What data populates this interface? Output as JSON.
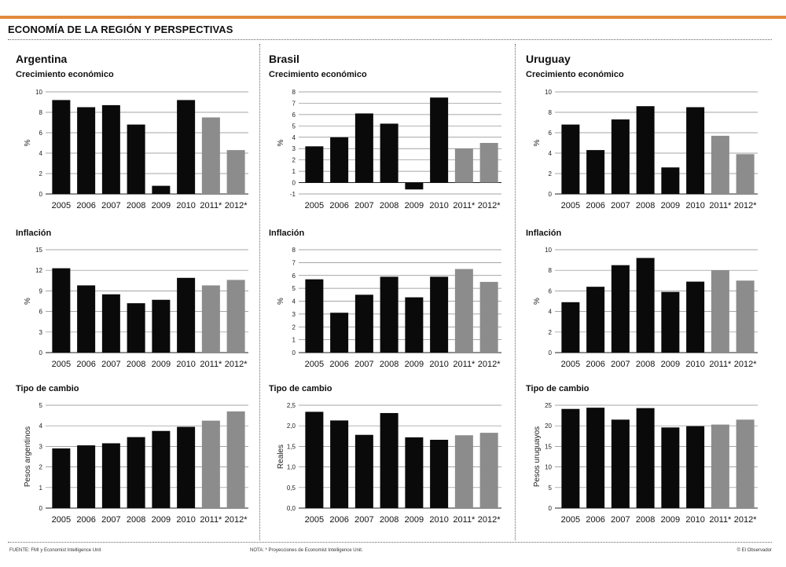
{
  "header": {
    "title": "ECONOMÍA DE LA REGIÓN Y PERSPECTIVAS"
  },
  "columns": [
    {
      "country": "Argentina"
    },
    {
      "country": "Brasil"
    },
    {
      "country": "Uruguay"
    }
  ],
  "footer": {
    "source": "FUENTE: FMI y Economist Intelligence Unit",
    "note": "NOTA: * Proyecciones de Economist Intelligence Unit.",
    "credit": "© El Observador"
  },
  "chart_data": [
    {
      "id": "ar-growth",
      "country": "Argentina",
      "type": "bar",
      "title": "Crecimiento económico",
      "ylabel": "%",
      "categories": [
        "2005",
        "2006",
        "2007",
        "2008",
        "2009",
        "2010",
        "2011*",
        "2012*"
      ],
      "values": [
        9.2,
        8.5,
        8.7,
        6.8,
        0.8,
        9.2,
        7.5,
        4.3
      ],
      "projected": [
        false,
        false,
        false,
        false,
        false,
        false,
        true,
        true
      ],
      "ylim": [
        0,
        10
      ],
      "yticks": [
        "0",
        "2",
        "4",
        "6",
        "8",
        "10"
      ]
    },
    {
      "id": "br-growth",
      "country": "Brasil",
      "type": "bar",
      "title": "Crecimiento económico",
      "ylabel": "%",
      "categories": [
        "2005",
        "2006",
        "2007",
        "2008",
        "2009",
        "2010",
        "2011*",
        "2012*"
      ],
      "values": [
        3.2,
        4.0,
        6.1,
        5.2,
        -0.6,
        7.5,
        3.0,
        3.5
      ],
      "projected": [
        false,
        false,
        false,
        false,
        false,
        false,
        true,
        true
      ],
      "ylim": [
        -1,
        8
      ],
      "yticks": [
        "-1",
        "0",
        "1",
        "2",
        "3",
        "4",
        "5",
        "6",
        "7",
        "8"
      ]
    },
    {
      "id": "uy-growth",
      "country": "Uruguay",
      "type": "bar",
      "title": "Crecimiento económico",
      "ylabel": "%",
      "categories": [
        "2005",
        "2006",
        "2007",
        "2008",
        "2009",
        "2010",
        "2011*",
        "2012*"
      ],
      "values": [
        6.8,
        4.3,
        7.3,
        8.6,
        2.6,
        8.5,
        5.7,
        3.9
      ],
      "projected": [
        false,
        false,
        false,
        false,
        false,
        false,
        true,
        true
      ],
      "ylim": [
        0,
        10
      ],
      "yticks": [
        "0",
        "2",
        "4",
        "6",
        "8",
        "10"
      ]
    },
    {
      "id": "ar-inflation",
      "country": "Argentina",
      "type": "bar",
      "title": "Inflación",
      "ylabel": "%",
      "categories": [
        "2005",
        "2006",
        "2007",
        "2008",
        "2009",
        "2010",
        "2011*",
        "2012*"
      ],
      "values": [
        12.3,
        9.8,
        8.5,
        7.2,
        7.7,
        10.9,
        9.8,
        10.6
      ],
      "projected": [
        false,
        false,
        false,
        false,
        false,
        false,
        true,
        true
      ],
      "ylim": [
        0,
        15
      ],
      "yticks": [
        "0",
        "3",
        "6",
        "9",
        "12",
        "15"
      ]
    },
    {
      "id": "br-inflation",
      "country": "Brasil",
      "type": "bar",
      "title": "Inflación",
      "ylabel": "%",
      "categories": [
        "2005",
        "2006",
        "2007",
        "2008",
        "2009",
        "2010",
        "2011*",
        "2012*"
      ],
      "values": [
        5.7,
        3.1,
        4.5,
        5.9,
        4.3,
        5.9,
        6.5,
        5.5
      ],
      "projected": [
        false,
        false,
        false,
        false,
        false,
        false,
        true,
        true
      ],
      "ylim": [
        0,
        8
      ],
      "yticks": [
        "0",
        "1",
        "2",
        "3",
        "4",
        "5",
        "6",
        "7",
        "8"
      ]
    },
    {
      "id": "uy-inflation",
      "country": "Uruguay",
      "type": "bar",
      "title": "Inflación",
      "ylabel": "%",
      "categories": [
        "2005",
        "2006",
        "2007",
        "2008",
        "2009",
        "2010",
        "2011*",
        "2012*"
      ],
      "values": [
        4.9,
        6.4,
        8.5,
        9.2,
        5.9,
        6.9,
        8.0,
        7.0
      ],
      "projected": [
        false,
        false,
        false,
        false,
        false,
        false,
        true,
        true
      ],
      "ylim": [
        0,
        10
      ],
      "yticks": [
        "0",
        "2",
        "4",
        "6",
        "8",
        "10"
      ]
    },
    {
      "id": "ar-fx",
      "country": "Argentina",
      "type": "bar",
      "title": "Tipo de cambio",
      "ylabel": "Pesos argentinos",
      "categories": [
        "2005",
        "2006",
        "2007",
        "2008",
        "2009",
        "2010",
        "2011*",
        "2012*"
      ],
      "values": [
        2.9,
        3.05,
        3.15,
        3.45,
        3.75,
        3.95,
        4.25,
        4.7
      ],
      "projected": [
        false,
        false,
        false,
        false,
        false,
        false,
        true,
        true
      ],
      "ylim": [
        0,
        5
      ],
      "yticks": [
        "0",
        "1",
        "2",
        "3",
        "4",
        "5"
      ]
    },
    {
      "id": "br-fx",
      "country": "Brasil",
      "type": "bar",
      "title": "Tipo de cambio",
      "ylabel": "Reales",
      "categories": [
        "2005",
        "2006",
        "2007",
        "2008",
        "2009",
        "2010",
        "2011*",
        "2012*"
      ],
      "values": [
        2.34,
        2.13,
        1.78,
        2.31,
        1.72,
        1.66,
        1.77,
        1.83
      ],
      "projected": [
        false,
        false,
        false,
        false,
        false,
        false,
        true,
        true
      ],
      "ylim": [
        0,
        2.5
      ],
      "yticks": [
        "0,0",
        "0,5",
        "1,0",
        "1,5",
        "2,0",
        "2,5"
      ]
    },
    {
      "id": "uy-fx",
      "country": "Uruguay",
      "type": "bar",
      "title": "Tipo de cambio",
      "ylabel": "Pesos uruguayos",
      "categories": [
        "2005",
        "2006",
        "2007",
        "2008",
        "2009",
        "2010",
        "2011*",
        "2012*"
      ],
      "values": [
        24.1,
        24.4,
        21.5,
        24.3,
        19.6,
        19.9,
        20.3,
        21.5
      ],
      "projected": [
        false,
        false,
        false,
        false,
        false,
        false,
        true,
        true
      ],
      "ylim": [
        0,
        25
      ],
      "yticks": [
        "0",
        "5",
        "10",
        "15",
        "20",
        "25"
      ]
    }
  ],
  "colors": {
    "actual": "#0a0a0a",
    "projected": "#8c8c8c",
    "accent": "#e2893b",
    "grid": "#888888"
  }
}
